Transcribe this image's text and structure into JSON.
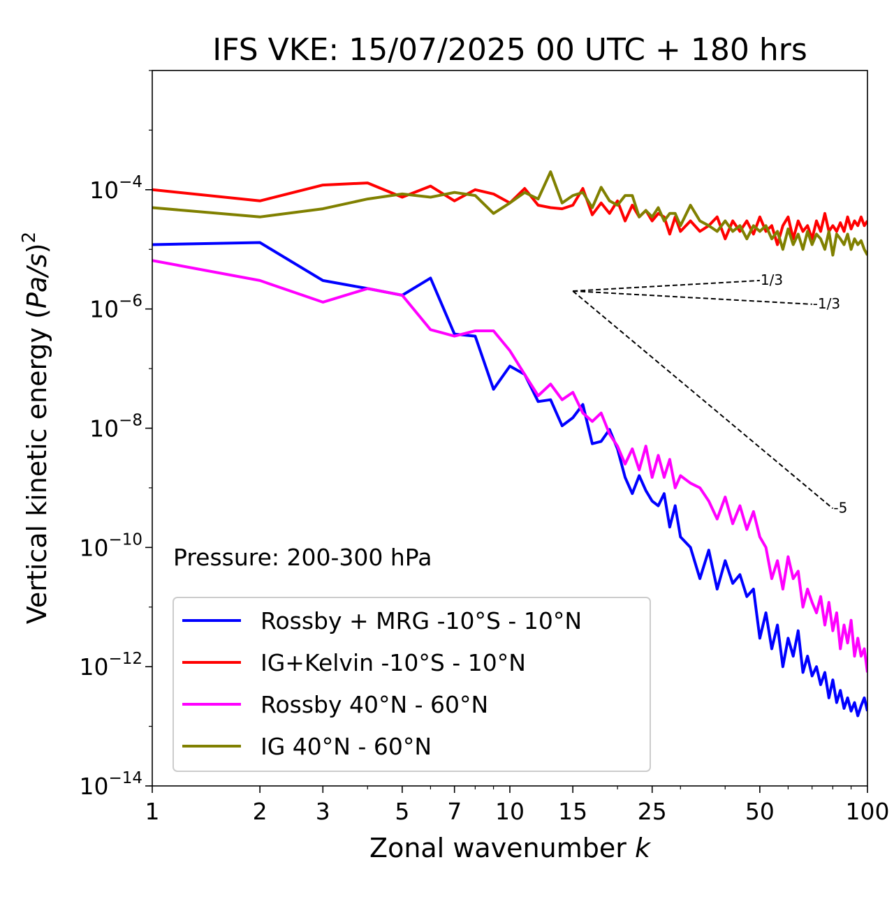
{
  "chart_data": {
    "type": "line",
    "title": "IFS VKE: 15/07/2025 00 UTC + 180 hrs",
    "xlabel": "Zonal wavenumber k",
    "ylabel": "Vertical kinetic energy (Pa/s)^2",
    "x_scale": "log",
    "y_scale": "log",
    "xlim": [
      1,
      100
    ],
    "ylim": [
      1e-14,
      0.01
    ],
    "x_ticks": [
      1,
      2,
      3,
      5,
      7,
      10,
      15,
      25,
      50,
      100
    ],
    "x_tick_labels": [
      "1",
      "2",
      "3",
      "5",
      "7",
      "10",
      "15",
      "25",
      "50",
      "100"
    ],
    "y_ticks": [
      1e-14,
      1e-12,
      1e-10,
      1e-08,
      1e-06,
      0.0001
    ],
    "y_tick_labels": [
      {
        "base": "10",
        "exp": "−14"
      },
      {
        "base": "10",
        "exp": "−12"
      },
      {
        "base": "10",
        "exp": "−10"
      },
      {
        "base": "10",
        "exp": "−8"
      },
      {
        "base": "10",
        "exp": "−6"
      },
      {
        "base": "10",
        "exp": "−4"
      }
    ],
    "annotation": "Pressure: 200-300 hPa",
    "legend_position": "lower-left",
    "reference_slopes": [
      {
        "label": "1/3",
        "x0": 15,
        "y0": 2e-06,
        "x1": 50,
        "y1": 3e-06
      },
      {
        "label": "-1/3",
        "x0": 15,
        "y0": 2e-06,
        "x1": 70,
        "y1": 1.2e-06
      },
      {
        "label": "-5",
        "x0": 15,
        "y0": 2e-06,
        "x1": 80,
        "y1": 4.5e-10
      }
    ],
    "series": [
      {
        "name": "Rossby + MRG -10°S - 10°N",
        "color": "#0000ff",
        "x": [
          1,
          2,
          3,
          4,
          5,
          6,
          7,
          8,
          9,
          10,
          11,
          12,
          13,
          14,
          15,
          16,
          17,
          18,
          19,
          20,
          21,
          22,
          23,
          24,
          25,
          26,
          27,
          28,
          29,
          30,
          32,
          34,
          36,
          38,
          40,
          42,
          44,
          46,
          48,
          50,
          52,
          54,
          56,
          58,
          60,
          62,
          64,
          66,
          68,
          70,
          72,
          74,
          76,
          78,
          80,
          82,
          84,
          86,
          88,
          90,
          92,
          94,
          96,
          98,
          100
        ],
        "y": [
          1.2e-05,
          1.3e-05,
          3e-06,
          2.2e-06,
          1.7e-06,
          3.3e-06,
          3.8e-07,
          3.5e-07,
          4.5e-08,
          1.1e-07,
          8e-08,
          2.8e-08,
          3e-08,
          1.1e-08,
          1.5e-08,
          2.5e-08,
          5.5e-09,
          6e-09,
          9.5e-09,
          4.5e-09,
          1.5e-09,
          8e-10,
          1.6e-09,
          9e-10,
          6e-10,
          5e-10,
          8e-10,
          2.2e-10,
          5e-10,
          1.5e-10,
          1e-10,
          3e-11,
          9e-11,
          2e-11,
          6e-11,
          2.5e-11,
          3.5e-11,
          1.5e-11,
          2e-11,
          3e-12,
          8e-12,
          2e-12,
          5e-12,
          1e-12,
          3e-12,
          1.5e-12,
          4e-12,
          8e-13,
          1.5e-12,
          7e-13,
          1e-12,
          5e-13,
          8e-13,
          3e-13,
          6e-13,
          2.5e-13,
          4e-13,
          2e-13,
          3e-13,
          1.8e-13,
          2.5e-13,
          1.5e-13,
          2.2e-13,
          3e-13,
          1.8e-13
        ]
      },
      {
        "name": "IG+Kelvin -10°S - 10°N",
        "color": "#ff0000",
        "x": [
          1,
          2,
          3,
          4,
          5,
          6,
          7,
          8,
          9,
          10,
          11,
          12,
          13,
          14,
          15,
          16,
          17,
          18,
          19,
          20,
          21,
          22,
          23,
          24,
          25,
          26,
          27,
          28,
          29,
          30,
          32,
          34,
          36,
          38,
          40,
          42,
          44,
          46,
          48,
          50,
          52,
          54,
          56,
          58,
          60,
          62,
          64,
          66,
          68,
          70,
          72,
          74,
          76,
          78,
          80,
          82,
          84,
          86,
          88,
          90,
          92,
          94,
          96,
          98,
          100
        ],
        "y": [
          0.0001,
          6.5e-05,
          0.00012,
          0.00013,
          7.5e-05,
          0.000115,
          6.5e-05,
          0.0001,
          8.5e-05,
          6e-05,
          0.000105,
          5.5e-05,
          5e-05,
          4.8e-05,
          5.5e-05,
          0.000105,
          3.8e-05,
          6e-05,
          4e-05,
          6.5e-05,
          3e-05,
          5.5e-05,
          3.5e-05,
          4.5e-05,
          3e-05,
          4e-05,
          3.5e-05,
          1.8e-05,
          3.5e-05,
          2e-05,
          3e-05,
          2e-05,
          2.5e-05,
          3.5e-05,
          1.5e-05,
          3e-05,
          2e-05,
          3e-05,
          1.8e-05,
          3.5e-05,
          2e-05,
          2.5e-05,
          1.2e-05,
          2.5e-05,
          3.5e-05,
          1.5e-05,
          3e-05,
          2e-05,
          2.5e-05,
          1.5e-05,
          3e-05,
          2e-05,
          4e-05,
          2e-05,
          2.5e-05,
          2e-05,
          2.8e-05,
          2e-05,
          3.5e-05,
          2.2e-05,
          3e-05,
          2.5e-05,
          3.5e-05,
          2.5e-05,
          3e-05
        ]
      },
      {
        "name": "Rossby 40°N - 60°N",
        "color": "#ff00ff",
        "x": [
          1,
          2,
          3,
          4,
          5,
          6,
          7,
          8,
          9,
          10,
          11,
          12,
          13,
          14,
          15,
          16,
          17,
          18,
          19,
          20,
          21,
          22,
          23,
          24,
          25,
          26,
          27,
          28,
          29,
          30,
          32,
          34,
          36,
          38,
          40,
          42,
          44,
          46,
          48,
          50,
          52,
          54,
          56,
          58,
          60,
          62,
          64,
          66,
          68,
          70,
          72,
          74,
          76,
          78,
          80,
          82,
          84,
          86,
          88,
          90,
          92,
          94,
          96,
          98,
          100
        ],
        "y": [
          6.5e-06,
          3e-06,
          1.3e-06,
          2.2e-06,
          1.7e-06,
          4.5e-07,
          3.5e-07,
          4.3e-07,
          4.3e-07,
          2e-07,
          8e-08,
          3.5e-08,
          5.5e-08,
          3e-08,
          4e-08,
          1.8e-08,
          1.3e-08,
          1.8e-08,
          8e-09,
          5e-09,
          2.5e-09,
          4.5e-09,
          2e-09,
          5e-09,
          1.5e-09,
          3.5e-09,
          1.5e-09,
          3e-09,
          1e-09,
          1.6e-09,
          1.2e-09,
          1e-09,
          6e-10,
          3e-10,
          7e-10,
          2.5e-10,
          5e-10,
          2e-10,
          4e-10,
          1.5e-10,
          1e-10,
          3e-11,
          6e-11,
          2e-11,
          7e-11,
          3e-11,
          4e-11,
          1e-11,
          2e-11,
          1.2e-11,
          8e-12,
          1.5e-11,
          5e-12,
          1.2e-11,
          4e-12,
          8e-12,
          2e-12,
          5e-12,
          2.5e-12,
          6e-12,
          1.5e-12,
          3e-12,
          1.5e-12,
          2e-12,
          8e-13
        ]
      },
      {
        "name": "IG 40°N - 60°N",
        "color": "#808000",
        "x": [
          1,
          2,
          3,
          4,
          5,
          6,
          7,
          8,
          9,
          10,
          11,
          12,
          13,
          14,
          15,
          16,
          17,
          18,
          19,
          20,
          21,
          22,
          23,
          24,
          25,
          26,
          27,
          28,
          29,
          30,
          32,
          34,
          36,
          38,
          40,
          42,
          44,
          46,
          48,
          50,
          52,
          54,
          56,
          58,
          60,
          62,
          64,
          66,
          68,
          70,
          72,
          74,
          76,
          78,
          80,
          82,
          84,
          86,
          88,
          90,
          92,
          94,
          96,
          98,
          100
        ],
        "y": [
          5e-05,
          3.5e-05,
          4.8e-05,
          7e-05,
          8.5e-05,
          7.5e-05,
          9e-05,
          8e-05,
          4e-05,
          6e-05,
          9e-05,
          7e-05,
          0.0002,
          6e-05,
          8e-05,
          9e-05,
          5e-05,
          0.00011,
          6.5e-05,
          5.5e-05,
          8e-05,
          8e-05,
          3.5e-05,
          4.5e-05,
          3.5e-05,
          5e-05,
          3e-05,
          4e-05,
          4e-05,
          2.5e-05,
          5.5e-05,
          3e-05,
          2.5e-05,
          2e-05,
          3e-05,
          2e-05,
          2.5e-05,
          1.5e-05,
          2.5e-05,
          2e-05,
          2.5e-05,
          1.5e-05,
          2e-05,
          1e-05,
          2.2e-05,
          1.2e-05,
          1.8e-05,
          1e-05,
          2e-05,
          1.2e-05,
          1.8e-05,
          1.5e-05,
          1e-05,
          2e-05,
          8e-06,
          1.8e-05,
          1.5e-05,
          1.2e-05,
          1.8e-05,
          1e-05,
          1.5e-05,
          1.2e-05,
          1.4e-05,
          1e-05,
          8e-06
        ]
      }
    ]
  }
}
